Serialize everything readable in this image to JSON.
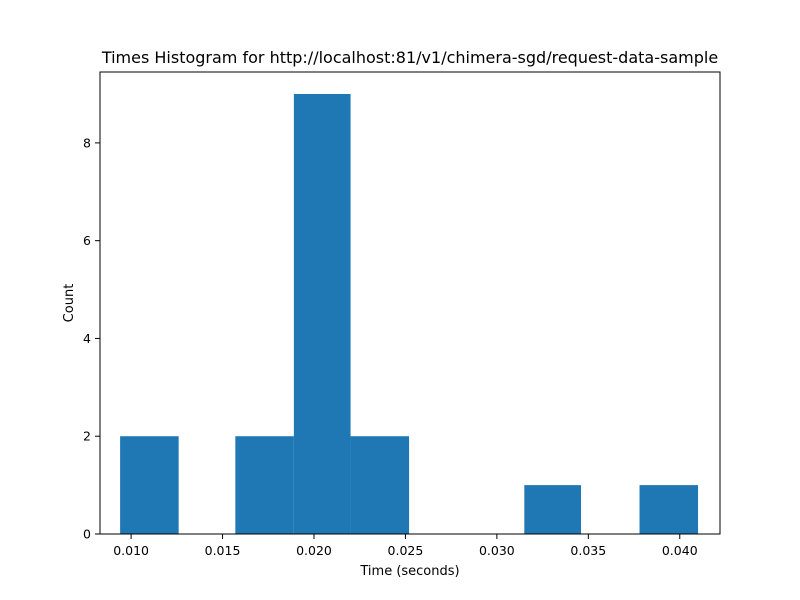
{
  "chart_data": {
    "type": "bar",
    "title": "Times Histogram for http://localhost:81/v1/chimera-sgd/request-data-sample",
    "xlabel": "Time (seconds)",
    "ylabel": "Count",
    "xlim": [
      0.0083,
      0.0422
    ],
    "ylim": [
      0,
      9.45
    ],
    "xticks": [
      "0.010",
      "0.015",
      "0.020",
      "0.025",
      "0.030",
      "0.035",
      "0.040"
    ],
    "yticks": [
      "0",
      "2",
      "4",
      "6",
      "8"
    ],
    "bin_edges": [
      0.0094,
      0.0126,
      0.0157,
      0.0189,
      0.022,
      0.0252,
      0.0283,
      0.0315,
      0.0346,
      0.0378,
      0.041
    ],
    "values": [
      2,
      0,
      2,
      9,
      2,
      0,
      0,
      1,
      0,
      1
    ],
    "bar_color": "#1f77b4",
    "grid": false,
    "legend": null
  }
}
